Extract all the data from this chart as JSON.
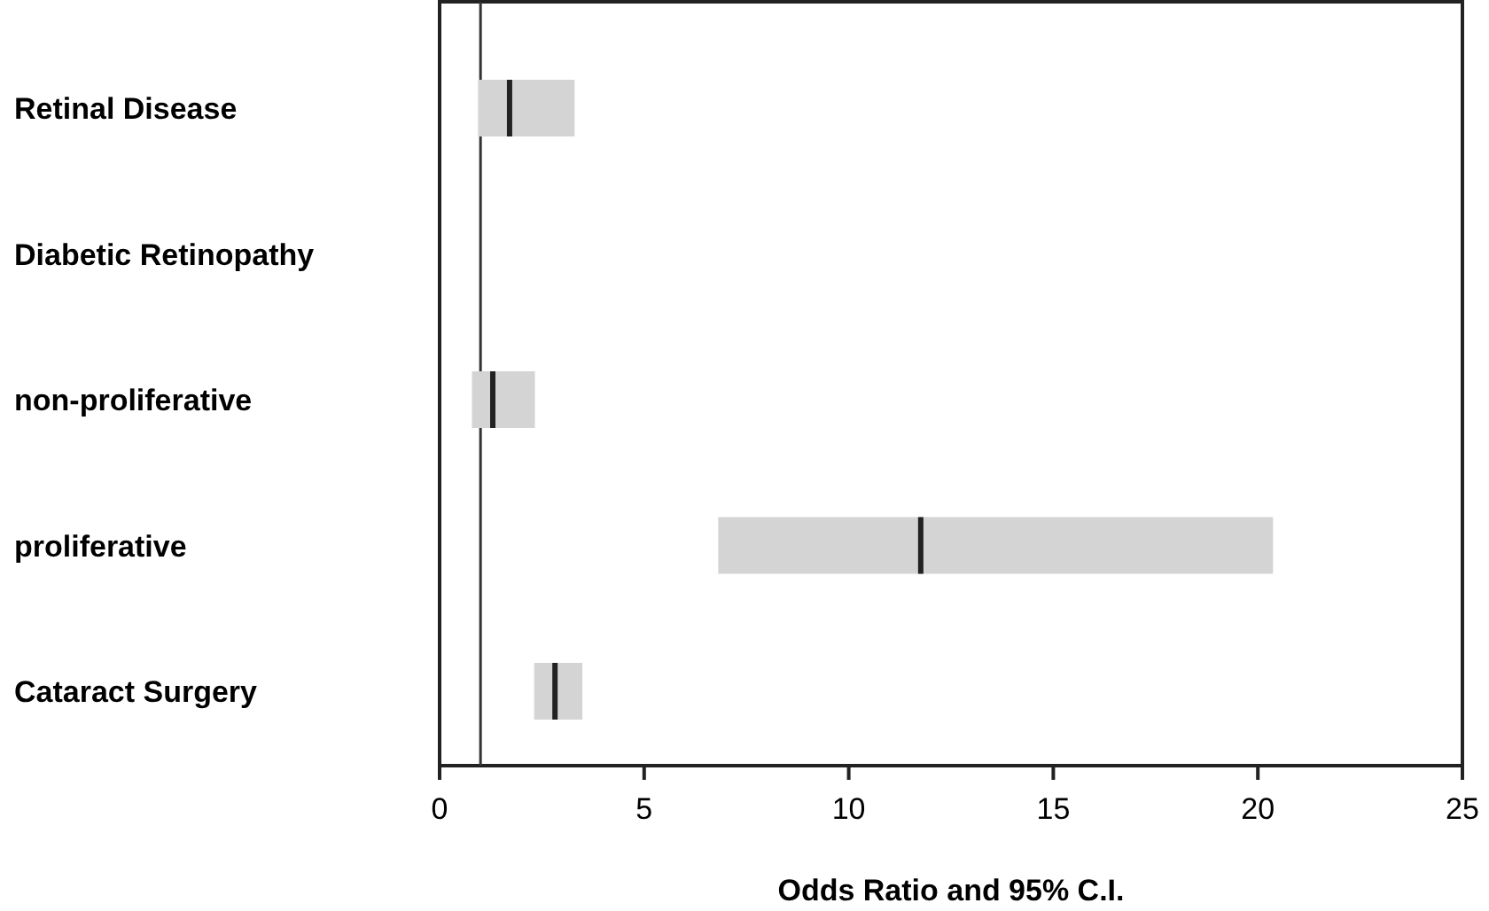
{
  "chart_data": {
    "type": "box",
    "orientation": "horizontal",
    "xlabel": "Odds Ratio and 95% C.I.",
    "categories": [
      "Retinal Disease",
      "Diabetic Retinopathy",
      "non-proliferative",
      "proliferative",
      "Cataract Surgery"
    ],
    "series": [
      {
        "color": "#d4d4d4",
        "boxes": [
          {
            "low": 0.94,
            "q1": 0.94,
            "median": 1.71,
            "q3": 3.3,
            "high": 3.3
          },
          null,
          {
            "low": 0.79,
            "q1": 0.79,
            "median": 1.3,
            "q3": 2.33,
            "high": 2.33
          },
          {
            "low": 6.81,
            "q1": 6.81,
            "median": 11.76,
            "q3": 20.37,
            "high": 20.37
          },
          {
            "low": 2.31,
            "q1": 2.31,
            "median": 2.82,
            "q3": 3.49,
            "high": 3.49
          }
        ]
      }
    ],
    "xlim": [
      0,
      25
    ],
    "xticks": [
      0,
      5,
      10,
      15,
      20,
      25
    ],
    "ref_lines": [
      {
        "axis": "x",
        "value": 1,
        "color": "#333333"
      }
    ],
    "grid": false
  }
}
